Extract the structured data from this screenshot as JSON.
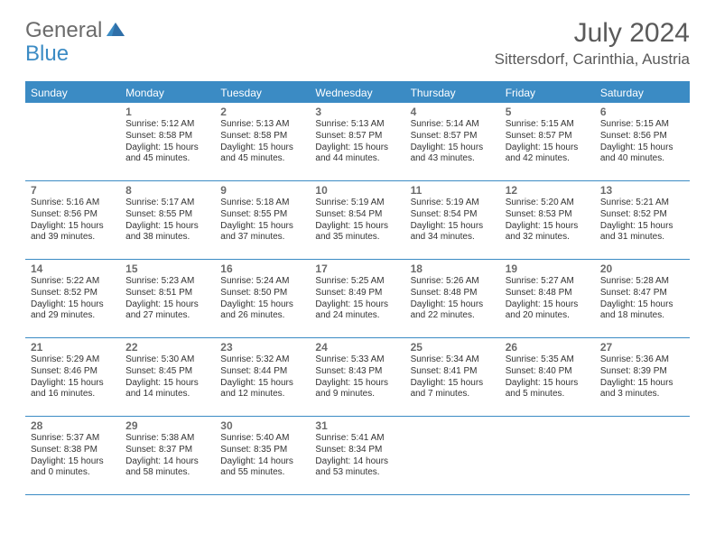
{
  "logo": {
    "text_general": "General",
    "text_blue": "Blue",
    "triangle_color": "#2f6fa8"
  },
  "title": "July 2024",
  "location": "Sittersdorf, Carinthia, Austria",
  "colors": {
    "header_bg": "#3b8bc4",
    "header_text": "#ffffff",
    "divider": "#3b8bc4",
    "daynum": "#6b6b6b",
    "body_text": "#333333",
    "title_text": "#5a5a5a",
    "logo_gray": "#6b6b6b"
  },
  "typography": {
    "title_fontsize": 30,
    "location_fontsize": 17,
    "dayheader_fontsize": 12,
    "daynum_fontsize": 12,
    "info_fontsize": 10
  },
  "day_headers": [
    "Sunday",
    "Monday",
    "Tuesday",
    "Wednesday",
    "Thursday",
    "Friday",
    "Saturday"
  ],
  "weeks": [
    [
      {},
      {
        "n": "1",
        "sunrise": "5:12 AM",
        "sunset": "8:58 PM",
        "daylight": "15 hours and 45 minutes."
      },
      {
        "n": "2",
        "sunrise": "5:13 AM",
        "sunset": "8:58 PM",
        "daylight": "15 hours and 45 minutes."
      },
      {
        "n": "3",
        "sunrise": "5:13 AM",
        "sunset": "8:57 PM",
        "daylight": "15 hours and 44 minutes."
      },
      {
        "n": "4",
        "sunrise": "5:14 AM",
        "sunset": "8:57 PM",
        "daylight": "15 hours and 43 minutes."
      },
      {
        "n": "5",
        "sunrise": "5:15 AM",
        "sunset": "8:57 PM",
        "daylight": "15 hours and 42 minutes."
      },
      {
        "n": "6",
        "sunrise": "5:15 AM",
        "sunset": "8:56 PM",
        "daylight": "15 hours and 40 minutes."
      }
    ],
    [
      {
        "n": "7",
        "sunrise": "5:16 AM",
        "sunset": "8:56 PM",
        "daylight": "15 hours and 39 minutes."
      },
      {
        "n": "8",
        "sunrise": "5:17 AM",
        "sunset": "8:55 PM",
        "daylight": "15 hours and 38 minutes."
      },
      {
        "n": "9",
        "sunrise": "5:18 AM",
        "sunset": "8:55 PM",
        "daylight": "15 hours and 37 minutes."
      },
      {
        "n": "10",
        "sunrise": "5:19 AM",
        "sunset": "8:54 PM",
        "daylight": "15 hours and 35 minutes."
      },
      {
        "n": "11",
        "sunrise": "5:19 AM",
        "sunset": "8:54 PM",
        "daylight": "15 hours and 34 minutes."
      },
      {
        "n": "12",
        "sunrise": "5:20 AM",
        "sunset": "8:53 PM",
        "daylight": "15 hours and 32 minutes."
      },
      {
        "n": "13",
        "sunrise": "5:21 AM",
        "sunset": "8:52 PM",
        "daylight": "15 hours and 31 minutes."
      }
    ],
    [
      {
        "n": "14",
        "sunrise": "5:22 AM",
        "sunset": "8:52 PM",
        "daylight": "15 hours and 29 minutes."
      },
      {
        "n": "15",
        "sunrise": "5:23 AM",
        "sunset": "8:51 PM",
        "daylight": "15 hours and 27 minutes."
      },
      {
        "n": "16",
        "sunrise": "5:24 AM",
        "sunset": "8:50 PM",
        "daylight": "15 hours and 26 minutes."
      },
      {
        "n": "17",
        "sunrise": "5:25 AM",
        "sunset": "8:49 PM",
        "daylight": "15 hours and 24 minutes."
      },
      {
        "n": "18",
        "sunrise": "5:26 AM",
        "sunset": "8:48 PM",
        "daylight": "15 hours and 22 minutes."
      },
      {
        "n": "19",
        "sunrise": "5:27 AM",
        "sunset": "8:48 PM",
        "daylight": "15 hours and 20 minutes."
      },
      {
        "n": "20",
        "sunrise": "5:28 AM",
        "sunset": "8:47 PM",
        "daylight": "15 hours and 18 minutes."
      }
    ],
    [
      {
        "n": "21",
        "sunrise": "5:29 AM",
        "sunset": "8:46 PM",
        "daylight": "15 hours and 16 minutes."
      },
      {
        "n": "22",
        "sunrise": "5:30 AM",
        "sunset": "8:45 PM",
        "daylight": "15 hours and 14 minutes."
      },
      {
        "n": "23",
        "sunrise": "5:32 AM",
        "sunset": "8:44 PM",
        "daylight": "15 hours and 12 minutes."
      },
      {
        "n": "24",
        "sunrise": "5:33 AM",
        "sunset": "8:43 PM",
        "daylight": "15 hours and 9 minutes."
      },
      {
        "n": "25",
        "sunrise": "5:34 AM",
        "sunset": "8:41 PM",
        "daylight": "15 hours and 7 minutes."
      },
      {
        "n": "26",
        "sunrise": "5:35 AM",
        "sunset": "8:40 PM",
        "daylight": "15 hours and 5 minutes."
      },
      {
        "n": "27",
        "sunrise": "5:36 AM",
        "sunset": "8:39 PM",
        "daylight": "15 hours and 3 minutes."
      }
    ],
    [
      {
        "n": "28",
        "sunrise": "5:37 AM",
        "sunset": "8:38 PM",
        "daylight": "15 hours and 0 minutes."
      },
      {
        "n": "29",
        "sunrise": "5:38 AM",
        "sunset": "8:37 PM",
        "daylight": "14 hours and 58 minutes."
      },
      {
        "n": "30",
        "sunrise": "5:40 AM",
        "sunset": "8:35 PM",
        "daylight": "14 hours and 55 minutes."
      },
      {
        "n": "31",
        "sunrise": "5:41 AM",
        "sunset": "8:34 PM",
        "daylight": "14 hours and 53 minutes."
      },
      {},
      {},
      {}
    ]
  ],
  "labels": {
    "sunrise_prefix": "Sunrise: ",
    "sunset_prefix": "Sunset: ",
    "daylight_prefix": "Daylight: "
  }
}
